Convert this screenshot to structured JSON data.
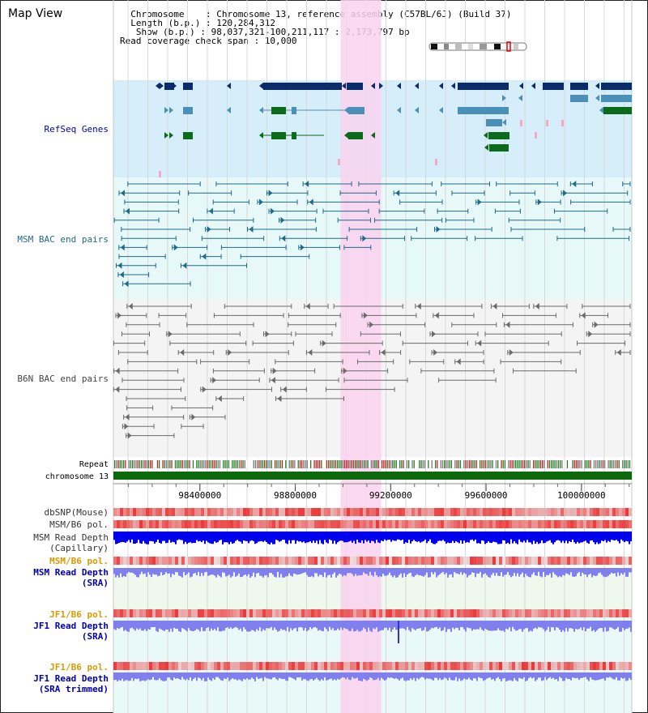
{
  "header": {
    "title": "Map View",
    "chromosome_line": "  Chromosome    : Chromosome 13, reference assembly (C57BL/6J) (Build 37)",
    "length_line": "  Length (b.p.) : 120,284,312",
    "show_line": "   Show (b.p.) : 98,037,321-100,211,117 : 2,173,797 bp",
    "span_line": "Read coverage check span : 10,000"
  },
  "tracks": {
    "refseq": "RefSeq Genes",
    "msm_bac": "MSM BAC end pairs",
    "b6n_bac": "B6N BAC end pairs",
    "repeat": "Repeat",
    "chromosome": "chromosome 13",
    "dbsnp": "dbSNP(Mouse)",
    "msm_b6_pol": "MSM/B6 pol.",
    "msm_depth_cap_1": "MSM Read Depth",
    "msm_depth_cap_2": "(Capillary)",
    "msm_b6_pol2": "MSM/B6 pol.",
    "msm_depth_sra_1": "MSM Read Depth",
    "msm_depth_sra_2": "(SRA)",
    "jf1_b6_pol": "JF1/B6 pol.",
    "jf1_depth_sra_1": "JF1 Read Depth",
    "jf1_depth_sra_2": "(SRA)",
    "jf1_b6_pol2": "JF1/B6 pol.",
    "jf1_depth_trim_1": "JF1 Read Depth",
    "jf1_depth_trim_2": "(SRA trimmed)"
  },
  "axis": {
    "ticks": [
      {
        "bp": 98400000,
        "label": "98400000"
      },
      {
        "bp": 98800000,
        "label": "98800000"
      },
      {
        "bp": 99200000,
        "label": "99200000"
      },
      {
        "bp": 99600000,
        "label": "99600000"
      },
      {
        "bp": 100000000,
        "label": "100000000"
      }
    ],
    "start_bp": 98037321,
    "end_bp": 100211117,
    "highlight_start_bp": 98990000,
    "highlight_end_bp": 99160000
  },
  "colors": {
    "refseq_bg": "#d6eef9",
    "msm_bg": "#e6f8f8",
    "b6n_bg": "#f4f4f4",
    "highlight": "#f9d2ee",
    "gene_dark": "#0b2c6b",
    "gene_mid": "#4a8fb8",
    "gene_green": "#0a6b1a",
    "msm_line": "#1f6a8a",
    "b6n_line": "#6a6a6a",
    "chromosome": "#0c6a0c",
    "label_blue": "#0000aa",
    "label_teal": "#1f6a8a",
    "label_orange": "#d89a00",
    "label_dark": "#333333",
    "depth_blue": "#0000ee",
    "depth_lav": "#7f80ee",
    "snp_red": "#e23a3a"
  }
}
